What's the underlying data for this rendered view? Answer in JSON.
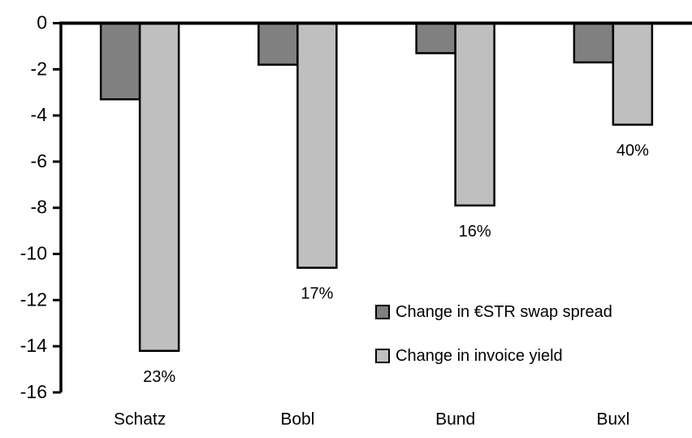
{
  "chart_data": {
    "type": "bar",
    "title": "",
    "xlabel": "",
    "ylabel": "",
    "categories": [
      "Schatz",
      "Bobl",
      "Bund",
      "Buxl"
    ],
    "series": [
      {
        "name": "Change in €STR swap spread",
        "color": "#808080",
        "values": [
          -3.3,
          -1.8,
          -1.3,
          -1.7
        ]
      },
      {
        "name": "Change in invoice yield",
        "color": "#bfbfbf",
        "values": [
          -14.2,
          -10.6,
          -7.9,
          -4.4
        ]
      }
    ],
    "bar_labels": {
      "series": "Change in invoice yield",
      "values": [
        "23%",
        "17%",
        "16%",
        "40%"
      ]
    },
    "yticks": [
      0,
      -2,
      -4,
      -6,
      -8,
      -10,
      -12,
      -14,
      -16
    ],
    "ylim": [
      -16,
      0
    ],
    "grid": false,
    "legend_position": "inside-right-lower",
    "bar_border_color": "#000000",
    "axis_color": "#000000",
    "background_color": "#ffffff"
  }
}
